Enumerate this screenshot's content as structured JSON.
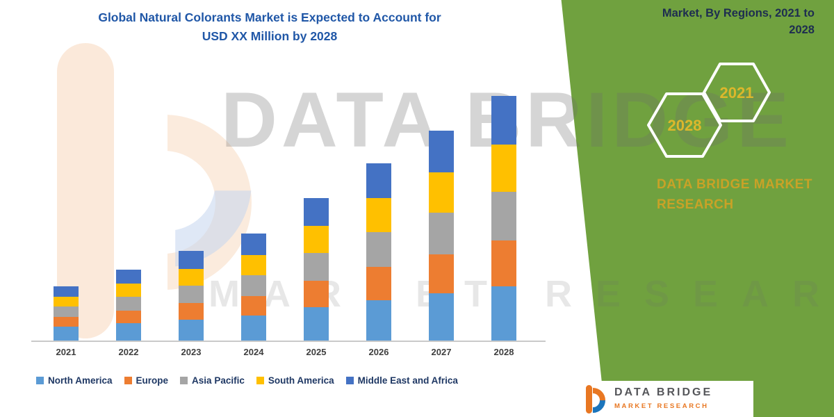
{
  "header": {
    "title_line1": "Global Natural Colorants Market is Expected to Account for",
    "title_line2": "USD XX Million by 2028",
    "title_color": "#2057A7"
  },
  "side_panel": {
    "heading": "Market, By Regions, 2021 to 2028",
    "green_color": "#70A13F",
    "hexagons": [
      {
        "label": "2028"
      },
      {
        "label": "2021"
      }
    ],
    "hex_text_color": "#DDB72C",
    "brand_line1": "DATA BRIDGE MARKET",
    "brand_line2": "RESEARCH"
  },
  "watermark": {
    "line1": "DATA BRIDGE",
    "line2": "MARKET RESEARCH"
  },
  "footer_logo": {
    "title": "DATA BRIDGE",
    "subtitle": "MARKET RESEARCH"
  },
  "chart_data": {
    "type": "bar",
    "stacked": true,
    "title": "Global Natural Colorants Market is Expected to Account for USD XX Million by 2028",
    "subtitle": "Market, By Regions, 2021 to 2028",
    "categories": [
      "2021",
      "2022",
      "2023",
      "2024",
      "2025",
      "2026",
      "2027",
      "2028"
    ],
    "series": [
      {
        "name": "North America",
        "color": "#5B9BD5",
        "values": [
          20,
          25,
          30,
          36,
          48,
          58,
          68,
          78
        ]
      },
      {
        "name": "Europe",
        "color": "#ED7D31",
        "values": [
          14,
          18,
          24,
          28,
          38,
          48,
          56,
          66
        ]
      },
      {
        "name": "Asia Pacific",
        "color": "#A5A5A5",
        "values": [
          15,
          20,
          25,
          30,
          40,
          50,
          60,
          70
        ]
      },
      {
        "name": "South America",
        "color": "#FFC000",
        "values": [
          14,
          19,
          24,
          29,
          39,
          49,
          58,
          68
        ]
      },
      {
        "name": "Middle East and Africa",
        "color": "#4472C4",
        "values": [
          15,
          20,
          26,
          31,
          40,
          50,
          60,
          70
        ]
      }
    ],
    "xlabel": "",
    "ylabel": "",
    "value_axis_visible": false,
    "implied_value_range": [
      0,
      400
    ],
    "gridlines": false,
    "legend_position": "bottom",
    "note": "Actual figures masked as 'USD XX Million' in source; series values are visual estimates in relative units."
  }
}
